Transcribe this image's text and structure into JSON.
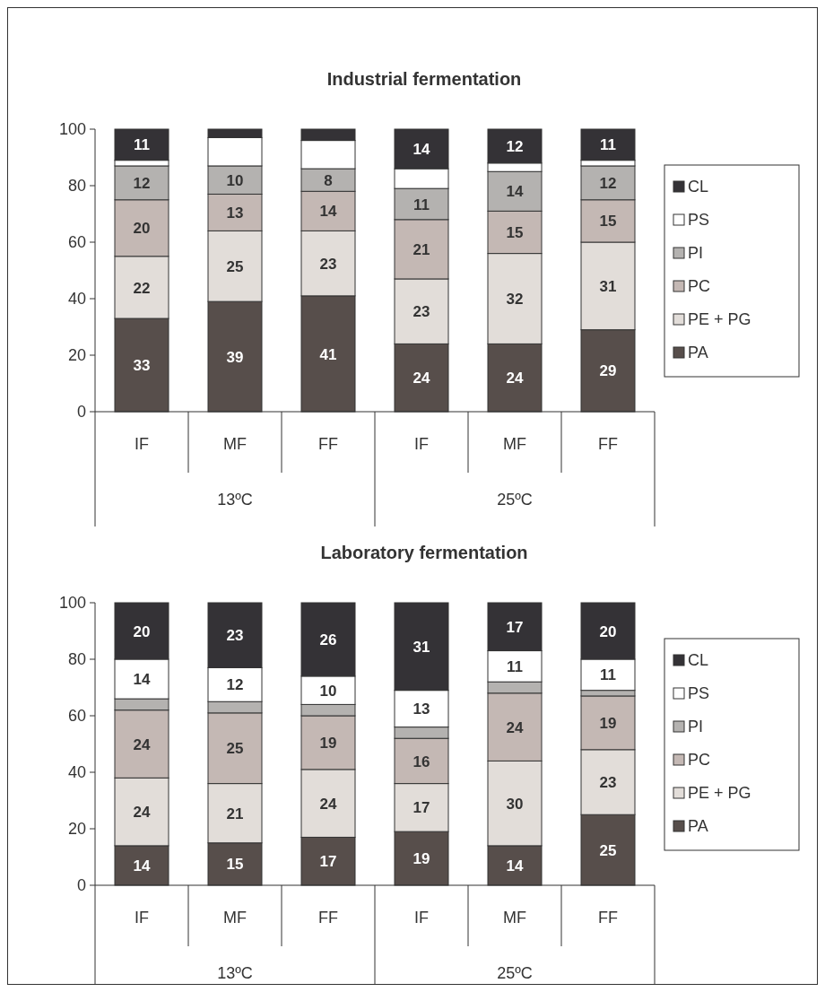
{
  "chart_data": [
    {
      "type": "bar",
      "stacked": true,
      "title": "Industrial fermentation",
      "categories": [
        "IF",
        "MF",
        "FF",
        "IF",
        "MF",
        "FF"
      ],
      "annotations": [
        "13ºC",
        "25ºC"
      ],
      "ylim": [
        0,
        100
      ],
      "yticks": [
        0,
        20,
        40,
        60,
        80,
        100
      ],
      "legend": "right",
      "series": [
        {
          "name": "PA",
          "color": "#574e4b",
          "values": [
            33,
            39,
            41,
            24,
            24,
            29
          ],
          "value_labels": [
            "33",
            "39",
            "41",
            "24",
            "24",
            "29"
          ]
        },
        {
          "name": "PE + PG",
          "color": "#e2ddd9",
          "values": [
            22,
            25,
            23,
            23,
            32,
            31
          ],
          "value_labels": [
            "22",
            "25",
            "23",
            "23",
            "32",
            "31"
          ]
        },
        {
          "name": "PC",
          "color": "#c4b8b4",
          "values": [
            20,
            13,
            14,
            21,
            15,
            15
          ],
          "value_labels": [
            "20",
            "13",
            "14",
            "21",
            "15",
            "15"
          ]
        },
        {
          "name": "PI",
          "color": "#b4b2b0",
          "values": [
            12,
            10,
            8,
            11,
            14,
            12
          ],
          "value_labels": [
            "12",
            "10",
            "8",
            "11",
            "14",
            "12"
          ]
        },
        {
          "name": "PS",
          "color": "#ffffff",
          "values": [
            2,
            10,
            10,
            7,
            3,
            2
          ],
          "value_labels": [
            null,
            null,
            null,
            null,
            null,
            null
          ]
        },
        {
          "name": "CL",
          "color": "#343236",
          "values": [
            11,
            3,
            4,
            14,
            12,
            11
          ],
          "value_labels": [
            "11",
            null,
            null,
            "14",
            "12",
            "11"
          ]
        }
      ]
    },
    {
      "type": "bar",
      "stacked": true,
      "title": "Laboratory fermentation",
      "categories": [
        "IF",
        "MF",
        "FF",
        "IF",
        "MF",
        "FF"
      ],
      "annotations": [
        "13ºC",
        "25ºC"
      ],
      "ylim": [
        0,
        100
      ],
      "yticks": [
        0,
        20,
        40,
        60,
        80,
        100
      ],
      "legend": "right",
      "series": [
        {
          "name": "PA",
          "color": "#574e4b",
          "values": [
            14,
            15,
            17,
            19,
            14,
            25
          ],
          "value_labels": [
            "14",
            "15",
            "17",
            "19",
            "14",
            "25"
          ]
        },
        {
          "name": "PE + PG",
          "color": "#e2ddd9",
          "values": [
            24,
            21,
            24,
            17,
            30,
            23
          ],
          "value_labels": [
            "24",
            "21",
            "24",
            "17",
            "30",
            "23"
          ]
        },
        {
          "name": "PC",
          "color": "#c4b8b4",
          "values": [
            24,
            25,
            19,
            16,
            24,
            19
          ],
          "value_labels": [
            "24",
            "25",
            "19",
            "16",
            "24",
            "19"
          ]
        },
        {
          "name": "PI",
          "color": "#b4b2b0",
          "values": [
            4,
            4,
            4,
            4,
            4,
            2
          ],
          "value_labels": [
            null,
            null,
            null,
            null,
            null,
            null
          ]
        },
        {
          "name": "PS",
          "color": "#ffffff",
          "values": [
            14,
            12,
            10,
            13,
            11,
            11
          ],
          "value_labels": [
            "14",
            "12",
            "10",
            "13",
            "11",
            "11"
          ]
        },
        {
          "name": "CL",
          "color": "#343236",
          "values": [
            20,
            23,
            26,
            31,
            17,
            20
          ],
          "value_labels": [
            "20",
            "23",
            "26",
            "31",
            "17",
            "20"
          ]
        }
      ]
    }
  ]
}
